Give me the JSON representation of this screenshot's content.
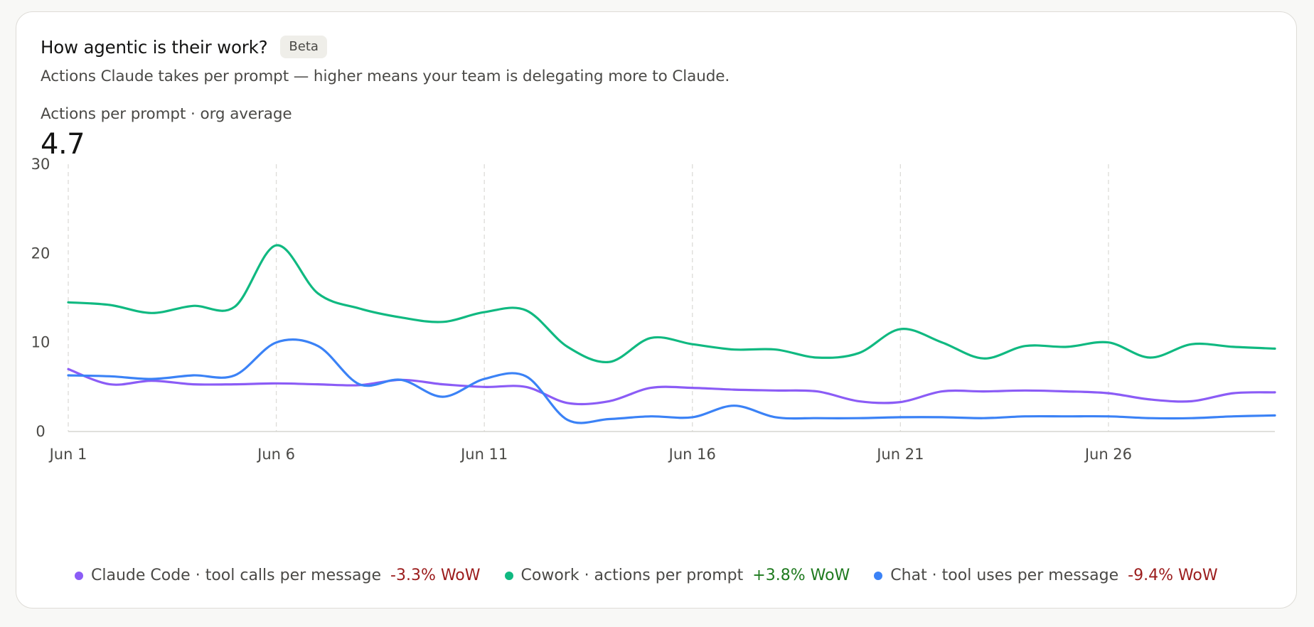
{
  "header": {
    "title": "How agentic is their work?",
    "badge": "Beta",
    "subtitle": "Actions Claude takes per prompt — higher means your team is delegating more to Claude.",
    "metric_label": "Actions per prompt · org average",
    "metric_value": "4.7"
  },
  "legend": [
    {
      "label": "Claude Code · tool calls per message",
      "change": "-3.3% WoW"
    },
    {
      "label": "Cowork · actions per prompt",
      "change": "+3.8% WoW"
    },
    {
      "label": "Chat · tool uses per message",
      "change": "-9.4% WoW"
    }
  ],
  "colors": {
    "claude_code": "#8b5cf6",
    "cowork": "#10b981",
    "chat": "#3b82f6",
    "negative": "#9b1c1c",
    "positive": "#1f7a1f",
    "grid": "#dddcd8",
    "axis": "#d6d5d0"
  },
  "chart_data": {
    "type": "line",
    "x": [
      "Jun 1",
      "Jun 2",
      "Jun 3",
      "Jun 4",
      "Jun 5",
      "Jun 6",
      "Jun 7",
      "Jun 8",
      "Jun 9",
      "Jun 10",
      "Jun 11",
      "Jun 12",
      "Jun 13",
      "Jun 14",
      "Jun 15",
      "Jun 16",
      "Jun 17",
      "Jun 18",
      "Jun 19",
      "Jun 20",
      "Jun 21",
      "Jun 22",
      "Jun 23",
      "Jun 24",
      "Jun 25",
      "Jun 26",
      "Jun 27",
      "Jun 28",
      "Jun 29",
      "Jun 30"
    ],
    "x_ticks": [
      "Jun 1",
      "Jun 6",
      "Jun 11",
      "Jun 16",
      "Jun 21",
      "Jun 26"
    ],
    "y_ticks": [
      0,
      10,
      20,
      30
    ],
    "ylim": [
      0,
      30
    ],
    "grid": "vertical dashed at x ticks",
    "legend_placement": "bottom",
    "series": [
      {
        "name": "Claude Code · tool calls per message",
        "values": [
          7.0,
          5.3,
          5.7,
          5.3,
          5.3,
          5.4,
          5.3,
          5.2,
          5.8,
          5.3,
          5.0,
          5.0,
          3.2,
          3.4,
          4.9,
          4.9,
          4.7,
          4.6,
          4.5,
          3.4,
          3.3,
          4.5,
          4.5,
          4.6,
          4.5,
          4.3,
          3.6,
          3.4,
          4.3,
          4.4
        ]
      },
      {
        "name": "Cowork · actions per prompt",
        "values": [
          14.5,
          14.2,
          13.3,
          14.1,
          14.0,
          20.9,
          15.5,
          13.8,
          12.8,
          12.3,
          13.4,
          13.6,
          9.5,
          7.8,
          10.5,
          9.8,
          9.2,
          9.2,
          8.3,
          8.8,
          11.5,
          10.0,
          8.2,
          9.6,
          9.5,
          10.0,
          8.3,
          9.8,
          9.5,
          9.3
        ]
      },
      {
        "name": "Chat · tool uses per message",
        "values": [
          6.3,
          6.2,
          5.9,
          6.3,
          6.3,
          10.0,
          9.6,
          5.3,
          5.8,
          3.9,
          5.9,
          6.2,
          1.3,
          1.4,
          1.7,
          1.6,
          2.9,
          1.6,
          1.5,
          1.5,
          1.6,
          1.6,
          1.5,
          1.7,
          1.7,
          1.7,
          1.5,
          1.5,
          1.7,
          1.8
        ]
      }
    ]
  }
}
